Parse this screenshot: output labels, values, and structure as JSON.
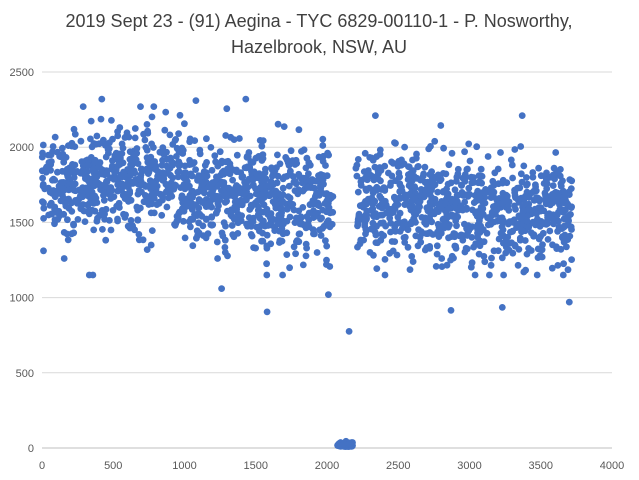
{
  "chart_data": {
    "type": "scatter",
    "title_lines": [
      "2019 Sept 23 - (91) Aegina - TYC 6829-00110-1 - P. Nosworthy,",
      "Hazelbrook, NSW, AU"
    ],
    "xlim": [
      0,
      4000
    ],
    "ylim": [
      0,
      2500
    ],
    "x_ticks": [
      0,
      500,
      1000,
      1500,
      2000,
      2500,
      3000,
      3500,
      4000
    ],
    "y_ticks": [
      0,
      500,
      1000,
      1500,
      2000,
      2500
    ],
    "x_tick_labels": [
      "0",
      "500",
      "1000",
      "1500",
      "2000",
      "2500",
      "3000",
      "3500",
      "4000"
    ],
    "y_tick_labels": [
      "0",
      "500",
      "1000",
      "1500",
      "2000",
      "2500"
    ],
    "grid": true,
    "marker_color": "#4472C4",
    "series": [
      {
        "segments": [
          {
            "x_range": [
              0,
              500
            ],
            "center": 1780,
            "spread": 170
          },
          {
            "x_range": [
              500,
              1000
            ],
            "center": 1790,
            "spread": 175
          },
          {
            "x_range": [
              1000,
              1500
            ],
            "center": 1700,
            "spread": 175
          },
          {
            "x_range": [
              1500,
              2050
            ],
            "center": 1640,
            "spread": 165
          },
          {
            "x_range": [
              2075,
              2180
            ],
            "center": 10,
            "spread": 15
          },
          {
            "x_range": [
              2200,
              2700
            ],
            "center": 1640,
            "spread": 170
          },
          {
            "x_range": [
              2700,
              3200
            ],
            "center": 1600,
            "spread": 170
          },
          {
            "x_range": [
              3200,
              3720
            ],
            "center": 1570,
            "spread": 165
          }
        ],
        "outliers": [
          {
            "x": 420,
            "y": 2320
          },
          {
            "x": 1080,
            "y": 2310
          },
          {
            "x": 1430,
            "y": 2320
          },
          {
            "x": 1580,
            "y": 905
          },
          {
            "x": 2155,
            "y": 775
          },
          {
            "x": 2870,
            "y": 915
          },
          {
            "x": 3230,
            "y": 935
          },
          {
            "x": 3700,
            "y": 970
          },
          {
            "x": 2340,
            "y": 2210
          },
          {
            "x": 3370,
            "y": 2210
          },
          {
            "x": 1260,
            "y": 1060
          },
          {
            "x": 2010,
            "y": 1020
          }
        ]
      }
    ]
  }
}
